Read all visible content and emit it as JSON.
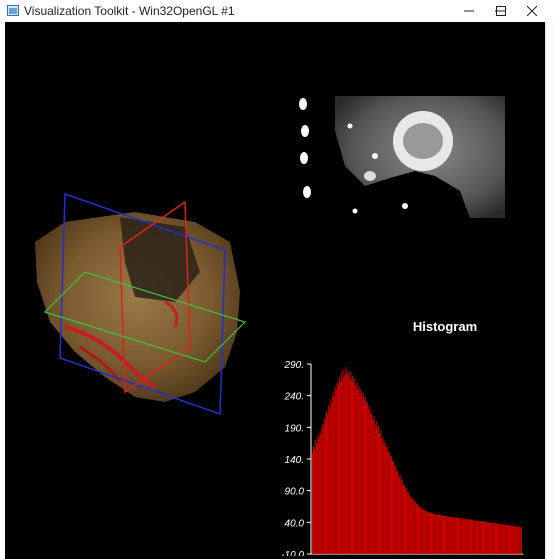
{
  "window": {
    "title": "Visualization Toolkit - Win32OpenGL #1",
    "app_icon": "vtk-app-icon",
    "buttons": {
      "minimize": "minimize-icon",
      "maximize": "maximize-icon",
      "close": "close-icon"
    }
  },
  "colors": {
    "background": "#000000",
    "bar_color": "#e00000",
    "axis_color": "#ffffff",
    "plane_red": "#e02020",
    "plane_blue": "#2030d0",
    "plane_green": "#40c040",
    "volume_tan": "#8a6a3a"
  },
  "views": {
    "volume_render": "3d-volume-with-slice-planes",
    "slice_view": "ct-axial-slice"
  },
  "histogram": {
    "title": "Histogram"
  },
  "chart_data": {
    "type": "bar",
    "title": "Histogram",
    "xlabel": "",
    "ylabel": "",
    "ylim": [
      -10.0,
      290.0
    ],
    "y_tick_labels": [
      "290.",
      "240.",
      "190.",
      "140.",
      "90.0",
      "40.0",
      "-10.0"
    ],
    "y_ticks": [
      290,
      240,
      190,
      140,
      90,
      40,
      -10
    ],
    "grid": false,
    "values": [
      150,
      160,
      155,
      170,
      165,
      178,
      172,
      185,
      180,
      195,
      190,
      205,
      200,
      215,
      210,
      225,
      220,
      235,
      228,
      245,
      240,
      255,
      250,
      262,
      256,
      270,
      262,
      278,
      268,
      282,
      272,
      285,
      276,
      280,
      270,
      278,
      265,
      272,
      260,
      268,
      255,
      262,
      250,
      256,
      244,
      250,
      238,
      245,
      232,
      238,
      225,
      230,
      218,
      224,
      210,
      215,
      202,
      208,
      195,
      200,
      188,
      192,
      180,
      185,
      172,
      176,
      165,
      168,
      158,
      160,
      150,
      152,
      142,
      145,
      135,
      138,
      128,
      130,
      120,
      122,
      112,
      115,
      105,
      108,
      98,
      100,
      92,
      94,
      86,
      88,
      80,
      82,
      76,
      78,
      72,
      74,
      68,
      70,
      64,
      66,
      62,
      63,
      60,
      61,
      58,
      59,
      56,
      57,
      55,
      56,
      54,
      55,
      53,
      54,
      52,
      53,
      52,
      52,
      51,
      52,
      50,
      51,
      50,
      50,
      49,
      50,
      49,
      49,
      48,
      49,
      48,
      48,
      47,
      48,
      47,
      47,
      46,
      47,
      46,
      46,
      45,
      46,
      45,
      45,
      44,
      45,
      44,
      44,
      43,
      44,
      43,
      43,
      42,
      43,
      42,
      42,
      41,
      42,
      41,
      41,
      40,
      41,
      40,
      40,
      39,
      40,
      39,
      39,
      38,
      39,
      38,
      38,
      37,
      38,
      37,
      37,
      36,
      37,
      36,
      36,
      35,
      36,
      35,
      35,
      34,
      35,
      34,
      34,
      33,
      34,
      33,
      33,
      32,
      33
    ]
  }
}
